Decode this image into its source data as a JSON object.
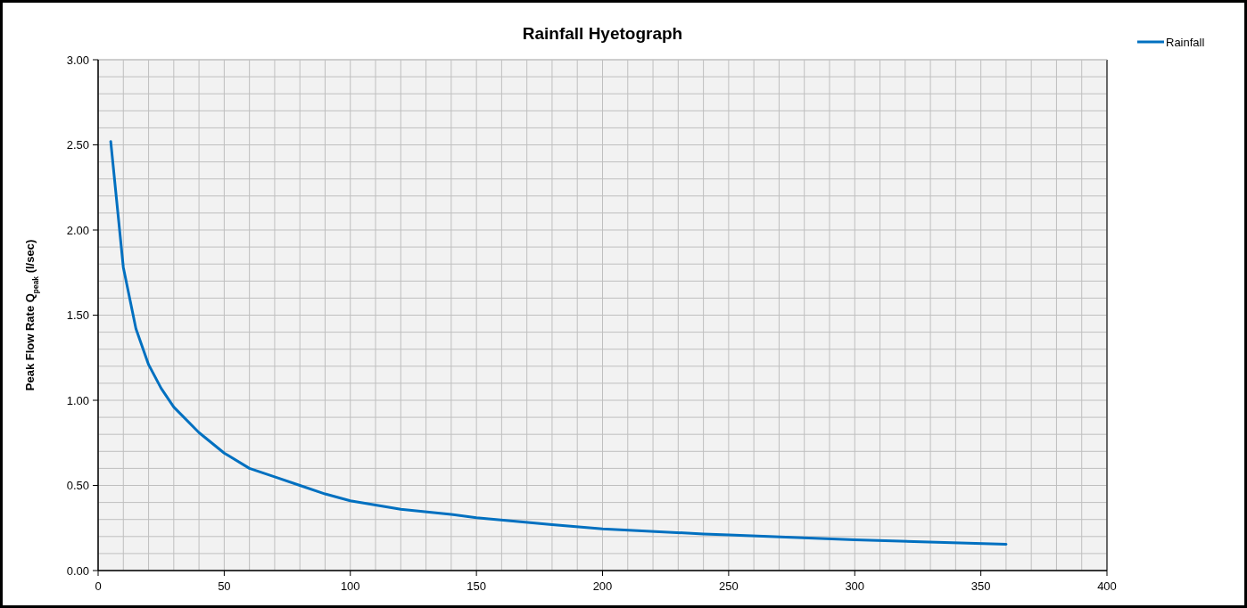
{
  "chart_data": {
    "type": "line",
    "title": "Rainfall Hyetograph",
    "ylabel": "Peak Flow Rate Q$_{peak}$ (l/sec)",
    "x": [
      5,
      10,
      15,
      20,
      25,
      30,
      40,
      50,
      60,
      70,
      80,
      90,
      100,
      120,
      140,
      150,
      180,
      200,
      240,
      250,
      300,
      360
    ],
    "series": [
      {
        "name": "Rainfall",
        "color": "#0070c0",
        "values": [
          2.52,
          1.78,
          1.42,
          1.21,
          1.07,
          0.96,
          0.81,
          0.69,
          0.6,
          0.55,
          0.5,
          0.45,
          0.41,
          0.36,
          0.33,
          0.31,
          0.27,
          0.245,
          0.215,
          0.21,
          0.18,
          0.155
        ]
      }
    ],
    "xlim": [
      0,
      400
    ],
    "xticks": [
      0,
      50,
      100,
      150,
      200,
      250,
      300,
      350,
      400
    ],
    "ylim": [
      0,
      3
    ],
    "yticks": [
      {
        "value": 0,
        "label": "0.00"
      },
      {
        "value": 0.5,
        "label": "0.50"
      },
      {
        "value": 1,
        "label": "1.00"
      },
      {
        "value": 1.5,
        "label": "1.50"
      },
      {
        "value": 2,
        "label": "2.00"
      },
      {
        "value": 2.5,
        "label": "2.50"
      },
      {
        "value": 3,
        "label": "3.00"
      }
    ],
    "grid": true,
    "legend": "top right",
    "marker": "none",
    "line_style": "solid"
  }
}
